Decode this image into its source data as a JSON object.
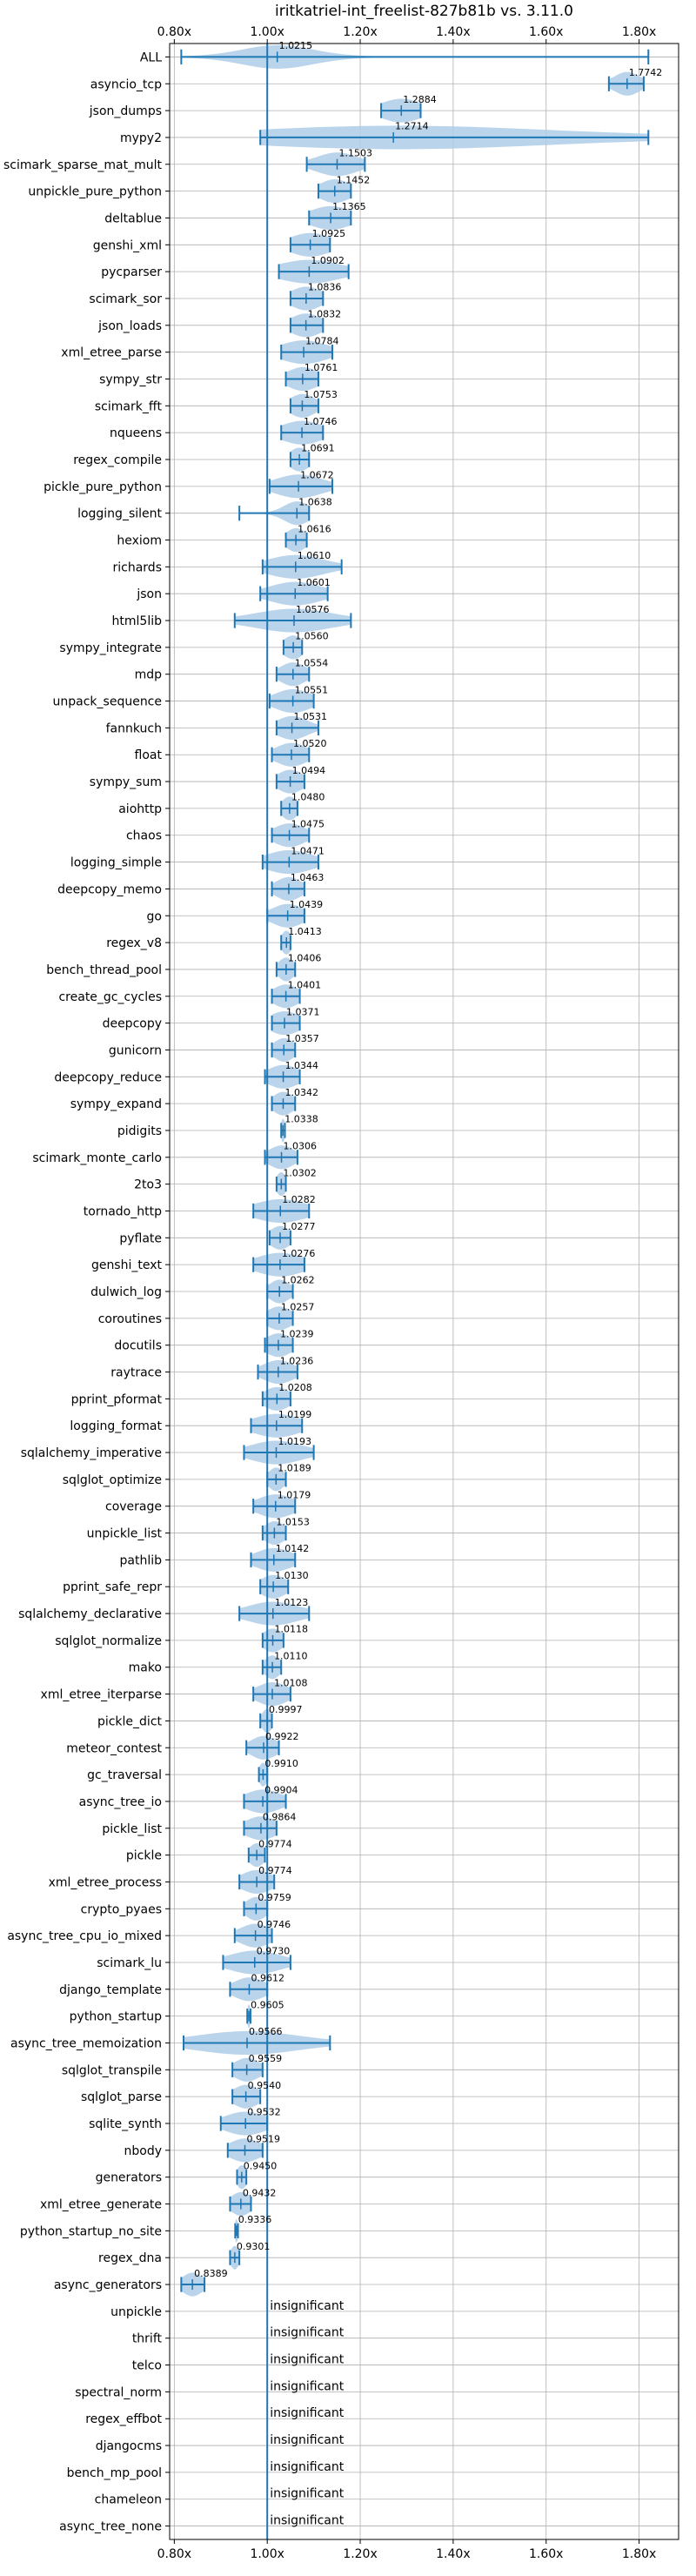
{
  "chart_data": {
    "type": "violin",
    "title": "iritkatriel-int_freelist-827b81b vs. 3.11.0",
    "xlabel": "",
    "ylabel": "",
    "xlim": [
      0.79,
      1.885
    ],
    "xticks": [
      0.8,
      1.0,
      1.2,
      1.4,
      1.6,
      1.8
    ],
    "xtick_labels": [
      "0.80x",
      "1.00x",
      "1.20x",
      "1.40x",
      "1.60x",
      "1.80x"
    ],
    "reference_line": 1.0,
    "grid": true,
    "accent_color": "#1f77b4",
    "violin_color": "#aecde8",
    "insignificant_text": "insignificant",
    "benchmarks": [
      {
        "name": "ALL",
        "label": "1.0215",
        "median": 1.0215,
        "min": 0.815,
        "max": 1.82,
        "q1": 1.0,
        "q3": 1.05,
        "spread": 0.07
      },
      {
        "name": "asyncio_tcp",
        "label": "1.7742",
        "median": 1.7742,
        "min": 1.735,
        "max": 1.81,
        "q1": 1.765,
        "q3": 1.785,
        "spread": 0.025
      },
      {
        "name": "json_dumps",
        "label": "1.2884",
        "median": 1.2884,
        "min": 1.245,
        "max": 1.33,
        "q1": 1.27,
        "q3": 1.305,
        "spread": 0.04
      },
      {
        "name": "mypy2",
        "label": "1.2714",
        "median": 1.2714,
        "min": 0.985,
        "max": 1.82,
        "q1": 1.2,
        "q3": 1.5,
        "spread": 0.3
      },
      {
        "name": "scimark_sparse_mat_mult",
        "label": "1.1503",
        "median": 1.1503,
        "min": 1.085,
        "max": 1.21,
        "q1": 1.13,
        "q3": 1.17,
        "spread": 0.04
      },
      {
        "name": "unpickle_pure_python",
        "label": "1.1452",
        "median": 1.1452,
        "min": 1.11,
        "max": 1.18,
        "q1": 1.135,
        "q3": 1.16,
        "spread": 0.03
      },
      {
        "name": "deltablue",
        "label": "1.1365",
        "median": 1.1365,
        "min": 1.09,
        "max": 1.18,
        "q1": 1.12,
        "q3": 1.155,
        "spread": 0.04
      },
      {
        "name": "genshi_xml",
        "label": "1.0925",
        "median": 1.0925,
        "min": 1.05,
        "max": 1.135,
        "q1": 1.075,
        "q3": 1.11,
        "spread": 0.04
      },
      {
        "name": "pycparser",
        "label": "1.0902",
        "median": 1.0902,
        "min": 1.025,
        "max": 1.175,
        "q1": 1.06,
        "q3": 1.12,
        "spread": 0.06
      },
      {
        "name": "scimark_sor",
        "label": "1.0836",
        "median": 1.0836,
        "min": 1.05,
        "max": 1.12,
        "q1": 1.07,
        "q3": 1.1,
        "spread": 0.03
      },
      {
        "name": "json_loads",
        "label": "1.0832",
        "median": 1.0832,
        "min": 1.05,
        "max": 1.12,
        "q1": 1.07,
        "q3": 1.1,
        "spread": 0.03
      },
      {
        "name": "xml_etree_parse",
        "label": "1.0784",
        "median": 1.0784,
        "min": 1.03,
        "max": 1.14,
        "q1": 1.06,
        "q3": 1.1,
        "spread": 0.045
      },
      {
        "name": "sympy_str",
        "label": "1.0761",
        "median": 1.0761,
        "min": 1.04,
        "max": 1.11,
        "q1": 1.065,
        "q3": 1.09,
        "spread": 0.03
      },
      {
        "name": "scimark_fft",
        "label": "1.0753",
        "median": 1.0753,
        "min": 1.05,
        "max": 1.11,
        "q1": 1.065,
        "q3": 1.09,
        "spread": 0.025
      },
      {
        "name": "nqueens",
        "label": "1.0746",
        "median": 1.0746,
        "min": 1.03,
        "max": 1.12,
        "q1": 1.06,
        "q3": 1.09,
        "spread": 0.04
      },
      {
        "name": "regex_compile",
        "label": "1.0691",
        "median": 1.0691,
        "min": 1.05,
        "max": 1.09,
        "q1": 1.06,
        "q3": 1.08,
        "spread": 0.02
      },
      {
        "name": "pickle_pure_python",
        "label": "1.0672",
        "median": 1.0672,
        "min": 1.005,
        "max": 1.14,
        "q1": 1.05,
        "q3": 1.09,
        "spread": 0.045
      },
      {
        "name": "logging_silent",
        "label": "1.0638",
        "median": 1.0638,
        "min": 0.94,
        "max": 1.09,
        "q1": 1.05,
        "q3": 1.08,
        "spread": 0.025
      },
      {
        "name": "hexiom",
        "label": "1.0616",
        "median": 1.0616,
        "min": 1.04,
        "max": 1.085,
        "q1": 1.05,
        "q3": 1.075,
        "spread": 0.02
      },
      {
        "name": "richards",
        "label": "1.0610",
        "median": 1.061,
        "min": 0.99,
        "max": 1.16,
        "q1": 1.03,
        "q3": 1.09,
        "spread": 0.055
      },
      {
        "name": "json",
        "label": "1.0601",
        "median": 1.0601,
        "min": 0.985,
        "max": 1.13,
        "q1": 1.03,
        "q3": 1.09,
        "spread": 0.05
      },
      {
        "name": "html5lib",
        "label": "1.0576",
        "median": 1.0576,
        "min": 0.93,
        "max": 1.18,
        "q1": 1.0,
        "q3": 1.11,
        "spread": 0.075
      },
      {
        "name": "sympy_integrate",
        "label": "1.0560",
        "median": 1.056,
        "min": 1.035,
        "max": 1.075,
        "q1": 1.045,
        "q3": 1.065,
        "spread": 0.02
      },
      {
        "name": "mdp",
        "label": "1.0554",
        "median": 1.0554,
        "min": 1.02,
        "max": 1.09,
        "q1": 1.04,
        "q3": 1.07,
        "spread": 0.025
      },
      {
        "name": "unpack_sequence",
        "label": "1.0551",
        "median": 1.0551,
        "min": 1.005,
        "max": 1.1,
        "q1": 1.035,
        "q3": 1.075,
        "spread": 0.035
      },
      {
        "name": "fannkuch",
        "label": "1.0531",
        "median": 1.0531,
        "min": 1.02,
        "max": 1.11,
        "q1": 1.04,
        "q3": 1.07,
        "spread": 0.03
      },
      {
        "name": "float",
        "label": "1.0520",
        "median": 1.052,
        "min": 1.01,
        "max": 1.09,
        "q1": 1.035,
        "q3": 1.07,
        "spread": 0.03
      },
      {
        "name": "sympy_sum",
        "label": "1.0494",
        "median": 1.0494,
        "min": 1.02,
        "max": 1.08,
        "q1": 1.035,
        "q3": 1.065,
        "spread": 0.025
      },
      {
        "name": "aiohttp",
        "label": "1.0480",
        "median": 1.048,
        "min": 1.03,
        "max": 1.065,
        "q1": 1.04,
        "q3": 1.055,
        "spread": 0.015
      },
      {
        "name": "chaos",
        "label": "1.0475",
        "median": 1.0475,
        "min": 1.01,
        "max": 1.09,
        "q1": 1.03,
        "q3": 1.065,
        "spread": 0.03
      },
      {
        "name": "logging_simple",
        "label": "1.0471",
        "median": 1.0471,
        "min": 0.99,
        "max": 1.11,
        "q1": 1.02,
        "q3": 1.07,
        "spread": 0.045
      },
      {
        "name": "deepcopy_memo",
        "label": "1.0463",
        "median": 1.0463,
        "min": 1.01,
        "max": 1.08,
        "q1": 1.03,
        "q3": 1.06,
        "spread": 0.025
      },
      {
        "name": "go",
        "label": "1.0439",
        "median": 1.0439,
        "min": 1.0,
        "max": 1.08,
        "q1": 1.025,
        "q3": 1.06,
        "spread": 0.03
      },
      {
        "name": "regex_v8",
        "label": "1.0413",
        "median": 1.0413,
        "min": 1.03,
        "max": 1.05,
        "q1": 1.035,
        "q3": 1.047,
        "spread": 0.01
      },
      {
        "name": "bench_thread_pool",
        "label": "1.0406",
        "median": 1.0406,
        "min": 1.02,
        "max": 1.06,
        "q1": 1.03,
        "q3": 1.05,
        "spread": 0.015
      },
      {
        "name": "create_gc_cycles",
        "label": "1.0401",
        "median": 1.0401,
        "min": 1.01,
        "max": 1.07,
        "q1": 1.025,
        "q3": 1.055,
        "spread": 0.025
      },
      {
        "name": "deepcopy",
        "label": "1.0371",
        "median": 1.0371,
        "min": 1.01,
        "max": 1.07,
        "q1": 1.02,
        "q3": 1.055,
        "spread": 0.03
      },
      {
        "name": "gunicorn",
        "label": "1.0357",
        "median": 1.0357,
        "min": 1.01,
        "max": 1.06,
        "q1": 1.025,
        "q3": 1.05,
        "spread": 0.02
      },
      {
        "name": "deepcopy_reduce",
        "label": "1.0344",
        "median": 1.0344,
        "min": 0.995,
        "max": 1.07,
        "q1": 1.015,
        "q3": 1.055,
        "spread": 0.03
      },
      {
        "name": "sympy_expand",
        "label": "1.0342",
        "median": 1.0342,
        "min": 1.01,
        "max": 1.06,
        "q1": 1.025,
        "q3": 1.045,
        "spread": 0.02
      },
      {
        "name": "pidigits",
        "label": "1.0338",
        "median": 1.0338,
        "min": 1.03,
        "max": 1.038,
        "q1": 1.032,
        "q3": 1.036,
        "spread": 0.004
      },
      {
        "name": "scimark_monte_carlo",
        "label": "1.0306",
        "median": 1.0306,
        "min": 0.995,
        "max": 1.065,
        "q1": 1.015,
        "q3": 1.045,
        "spread": 0.025
      },
      {
        "name": "2to3",
        "label": "1.0302",
        "median": 1.0302,
        "min": 1.02,
        "max": 1.04,
        "q1": 1.025,
        "q3": 1.035,
        "spread": 0.01
      },
      {
        "name": "tornado_http",
        "label": "1.0282",
        "median": 1.0282,
        "min": 0.97,
        "max": 1.09,
        "q1": 1.0,
        "q3": 1.06,
        "spread": 0.05
      },
      {
        "name": "pyflate",
        "label": "1.0277",
        "median": 1.0277,
        "min": 1.005,
        "max": 1.05,
        "q1": 1.015,
        "q3": 1.04,
        "spread": 0.02
      },
      {
        "name": "genshi_text",
        "label": "1.0276",
        "median": 1.0276,
        "min": 0.97,
        "max": 1.08,
        "q1": 1.0,
        "q3": 1.055,
        "spread": 0.045
      },
      {
        "name": "dulwich_log",
        "label": "1.0262",
        "median": 1.0262,
        "min": 1.0,
        "max": 1.055,
        "q1": 1.015,
        "q3": 1.04,
        "spread": 0.02
      },
      {
        "name": "coroutines",
        "label": "1.0257",
        "median": 1.0257,
        "min": 1.0,
        "max": 1.055,
        "q1": 1.01,
        "q3": 1.04,
        "spread": 0.025
      },
      {
        "name": "docutils",
        "label": "1.0239",
        "median": 1.0239,
        "min": 0.995,
        "max": 1.055,
        "q1": 1.01,
        "q3": 1.04,
        "spread": 0.025
      },
      {
        "name": "raytrace",
        "label": "1.0236",
        "median": 1.0236,
        "min": 0.98,
        "max": 1.065,
        "q1": 1.005,
        "q3": 1.045,
        "spread": 0.03
      },
      {
        "name": "pprint_pformat",
        "label": "1.0208",
        "median": 1.0208,
        "min": 0.99,
        "max": 1.05,
        "q1": 1.005,
        "q3": 1.035,
        "spread": 0.025
      },
      {
        "name": "logging_format",
        "label": "1.0199",
        "median": 1.0199,
        "min": 0.965,
        "max": 1.075,
        "q1": 0.995,
        "q3": 1.045,
        "spread": 0.045
      },
      {
        "name": "sqlalchemy_imperative",
        "label": "1.0193",
        "median": 1.0193,
        "min": 0.95,
        "max": 1.1,
        "q1": 0.99,
        "q3": 1.05,
        "spread": 0.05
      },
      {
        "name": "sqlglot_optimize",
        "label": "1.0189",
        "median": 1.0189,
        "min": 1.0,
        "max": 1.04,
        "q1": 1.01,
        "q3": 1.03,
        "spread": 0.015
      },
      {
        "name": "coverage",
        "label": "1.0179",
        "median": 1.0179,
        "min": 0.97,
        "max": 1.06,
        "q1": 1.0,
        "q3": 1.04,
        "spread": 0.035
      },
      {
        "name": "unpickle_list",
        "label": "1.0153",
        "median": 1.0153,
        "min": 0.99,
        "max": 1.04,
        "q1": 1.005,
        "q3": 1.03,
        "spread": 0.02
      },
      {
        "name": "pathlib",
        "label": "1.0142",
        "median": 1.0142,
        "min": 0.965,
        "max": 1.06,
        "q1": 0.995,
        "q3": 1.035,
        "spread": 0.035
      },
      {
        "name": "pprint_safe_repr",
        "label": "1.0130",
        "median": 1.013,
        "min": 0.985,
        "max": 1.045,
        "q1": 1.0,
        "q3": 1.03,
        "spread": 0.025
      },
      {
        "name": "sqlalchemy_declarative",
        "label": "1.0123",
        "median": 1.0123,
        "min": 0.94,
        "max": 1.09,
        "q1": 0.98,
        "q3": 1.045,
        "spread": 0.05
      },
      {
        "name": "sqlglot_normalize",
        "label": "1.0118",
        "median": 1.0118,
        "min": 0.99,
        "max": 1.035,
        "q1": 1.0,
        "q3": 1.025,
        "spread": 0.02
      },
      {
        "name": "mako",
        "label": "1.0110",
        "median": 1.011,
        "min": 0.99,
        "max": 1.03,
        "q1": 1.0,
        "q3": 1.02,
        "spread": 0.015
      },
      {
        "name": "xml_etree_iterparse",
        "label": "1.0108",
        "median": 1.0108,
        "min": 0.97,
        "max": 1.05,
        "q1": 0.995,
        "q3": 1.03,
        "spread": 0.03
      },
      {
        "name": "pickle_dict",
        "label": "0.9997",
        "median": 0.9997,
        "min": 0.985,
        "max": 1.01,
        "q1": 0.993,
        "q3": 1.005,
        "spread": 0.01
      },
      {
        "name": "meteor_contest",
        "label": "0.9922",
        "median": 0.9922,
        "min": 0.955,
        "max": 1.025,
        "q1": 0.98,
        "q3": 1.005,
        "spread": 0.025
      },
      {
        "name": "gc_traversal",
        "label": "0.9910",
        "median": 0.991,
        "min": 0.982,
        "max": 1.0,
        "q1": 0.987,
        "q3": 0.995,
        "spread": 0.008
      },
      {
        "name": "async_tree_io",
        "label": "0.9904",
        "median": 0.9904,
        "min": 0.95,
        "max": 1.04,
        "q1": 0.975,
        "q3": 1.01,
        "spread": 0.035
      },
      {
        "name": "pickle_list",
        "label": "0.9864",
        "median": 0.9864,
        "min": 0.95,
        "max": 1.02,
        "q1": 0.97,
        "q3": 1.0,
        "spread": 0.03
      },
      {
        "name": "pickle",
        "label": "0.9774",
        "median": 0.9774,
        "min": 0.96,
        "max": 0.995,
        "q1": 0.97,
        "q3": 0.985,
        "spread": 0.015
      },
      {
        "name": "xml_etree_process",
        "label": "0.9774",
        "median": 0.9774,
        "min": 0.94,
        "max": 1.015,
        "q1": 0.96,
        "q3": 0.995,
        "spread": 0.03
      },
      {
        "name": "crypto_pyaes",
        "label": "0.9759",
        "median": 0.9759,
        "min": 0.95,
        "max": 1.0,
        "q1": 0.965,
        "q3": 0.99,
        "spread": 0.02
      },
      {
        "name": "async_tree_cpu_io_mixed",
        "label": "0.9746",
        "median": 0.9746,
        "min": 0.93,
        "max": 1.01,
        "q1": 0.955,
        "q3": 0.99,
        "spread": 0.03
      },
      {
        "name": "scimark_lu",
        "label": "0.9730",
        "median": 0.973,
        "min": 0.905,
        "max": 1.05,
        "q1": 0.945,
        "q3": 1.0,
        "spread": 0.05
      },
      {
        "name": "django_template",
        "label": "0.9612",
        "median": 0.9612,
        "min": 0.92,
        "max": 1.0,
        "q1": 0.945,
        "q3": 0.98,
        "spread": 0.03
      },
      {
        "name": "python_startup",
        "label": "0.9605",
        "median": 0.9605,
        "min": 0.957,
        "max": 0.964,
        "q1": 0.959,
        "q3": 0.962,
        "spread": 0.003
      },
      {
        "name": "async_tree_memoization",
        "label": "0.9566",
        "median": 0.9566,
        "min": 0.82,
        "max": 1.135,
        "q1": 0.91,
        "q3": 1.0,
        "spread": 0.1
      },
      {
        "name": "sqlglot_transpile",
        "label": "0.9559",
        "median": 0.9559,
        "min": 0.925,
        "max": 0.99,
        "q1": 0.945,
        "q3": 0.97,
        "spread": 0.025
      },
      {
        "name": "sqlglot_parse",
        "label": "0.9540",
        "median": 0.954,
        "min": 0.925,
        "max": 0.985,
        "q1": 0.94,
        "q3": 0.97,
        "spread": 0.025
      },
      {
        "name": "sqlite_synth",
        "label": "0.9532",
        "median": 0.9532,
        "min": 0.9,
        "max": 1.0,
        "q1": 0.93,
        "q3": 0.975,
        "spread": 0.04
      },
      {
        "name": "nbody",
        "label": "0.9519",
        "median": 0.9519,
        "min": 0.915,
        "max": 0.99,
        "q1": 0.935,
        "q3": 0.97,
        "spread": 0.03
      },
      {
        "name": "generators",
        "label": "0.9450",
        "median": 0.945,
        "min": 0.935,
        "max": 0.955,
        "q1": 0.94,
        "q3": 0.95,
        "spread": 0.01
      },
      {
        "name": "xml_etree_generate",
        "label": "0.9432",
        "median": 0.9432,
        "min": 0.92,
        "max": 0.965,
        "q1": 0.935,
        "q3": 0.955,
        "spread": 0.02
      },
      {
        "name": "python_startup_no_site",
        "label": "0.9336",
        "median": 0.9336,
        "min": 0.931,
        "max": 0.937,
        "q1": 0.932,
        "q3": 0.935,
        "spread": 0.003
      },
      {
        "name": "regex_dna",
        "label": "0.9301",
        "median": 0.9301,
        "min": 0.92,
        "max": 0.94,
        "q1": 0.925,
        "q3": 0.935,
        "spread": 0.008
      },
      {
        "name": "async_generators",
        "label": "0.8389",
        "median": 0.8389,
        "min": 0.815,
        "max": 0.865,
        "q1": 0.83,
        "q3": 0.85,
        "spread": 0.02
      },
      {
        "name": "unpickle",
        "label": "insignificant",
        "insignificant": true
      },
      {
        "name": "thrift",
        "label": "insignificant",
        "insignificant": true
      },
      {
        "name": "telco",
        "label": "insignificant",
        "insignificant": true
      },
      {
        "name": "spectral_norm",
        "label": "insignificant",
        "insignificant": true
      },
      {
        "name": "regex_effbot",
        "label": "insignificant",
        "insignificant": true
      },
      {
        "name": "djangocms",
        "label": "insignificant",
        "insignificant": true
      },
      {
        "name": "bench_mp_pool",
        "label": "insignificant",
        "insignificant": true
      },
      {
        "name": "chameleon",
        "label": "insignificant",
        "insignificant": true
      },
      {
        "name": "async_tree_none",
        "label": "insignificant",
        "insignificant": true
      }
    ]
  }
}
